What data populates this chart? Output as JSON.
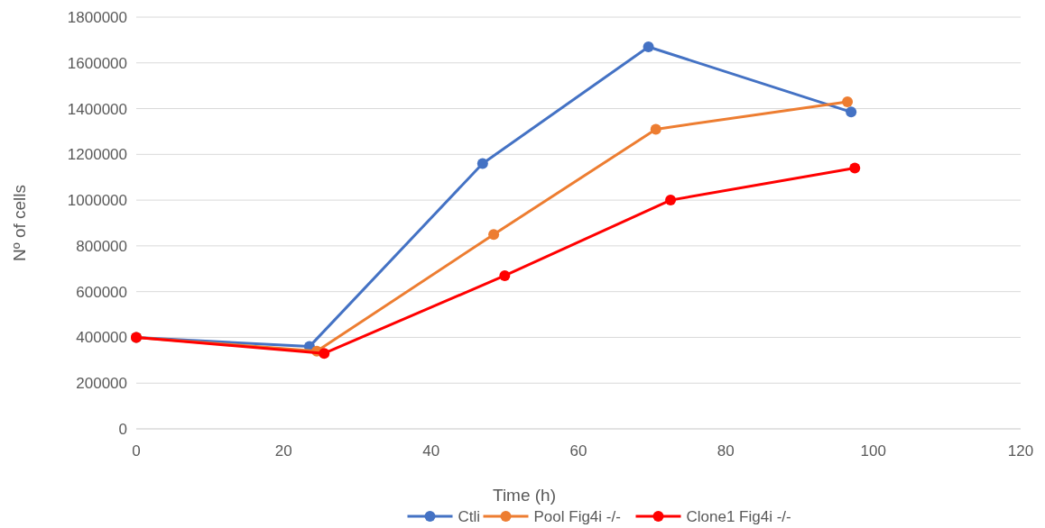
{
  "chart_data": {
    "type": "line",
    "xlabel": "Time (h)",
    "ylabel": "Nº of cells",
    "xlim": [
      0,
      120
    ],
    "xticks": [
      0,
      20,
      40,
      60,
      80,
      100,
      120
    ],
    "ylim": [
      0,
      1800000
    ],
    "yticks": [
      0,
      200000,
      400000,
      600000,
      800000,
      1000000,
      1200000,
      1400000,
      1600000,
      1800000
    ],
    "grid": "y",
    "legend": "bottom",
    "marker": "circle",
    "line_style": "solid",
    "series": [
      {
        "name": "Ctli",
        "color": "#4472c4",
        "x": [
          0,
          23.5,
          47,
          69.5,
          97
        ],
        "values": [
          400000,
          360000,
          1160000,
          1670000,
          1385000
        ]
      },
      {
        "name": "Pool Fig4i -/-",
        "color": "#ed7d31",
        "x": [
          0,
          24.5,
          48.5,
          70.5,
          96.5
        ],
        "values": [
          400000,
          340000,
          850000,
          1310000,
          1430000
        ]
      },
      {
        "name": "Clone1 Fig4i -/-",
        "color": "#ff0000",
        "x": [
          0,
          25.5,
          50,
          72.5,
          97.5
        ],
        "values": [
          400000,
          330000,
          670000,
          1000000,
          1140000
        ]
      }
    ]
  }
}
